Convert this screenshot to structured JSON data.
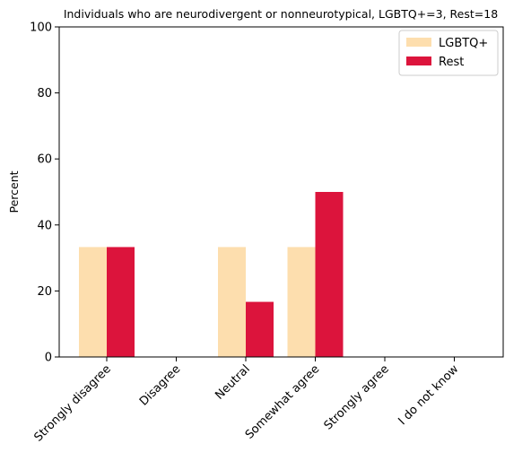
{
  "chart_data": {
    "type": "bar",
    "title": "Individuals who are neurodivergent or nonneurotypical, LGBTQ+=3, Rest=18",
    "xlabel": "",
    "ylabel": "Percent",
    "ylim": [
      0,
      100
    ],
    "yticks": [
      "0",
      "20",
      "40",
      "60",
      "80",
      "100"
    ],
    "categories": [
      "Strongly disagree",
      "Disagree",
      "Neutral",
      "Somewhat agree",
      "Strongly agree",
      "I do not know"
    ],
    "series": [
      {
        "name": "LGBTQ+",
        "color": "#fddeae",
        "values": [
          33.3,
          0,
          33.3,
          33.3,
          0,
          0
        ]
      },
      {
        "name": "Rest",
        "color": "#dc143c",
        "values": [
          33.3,
          0,
          16.7,
          50.0,
          0,
          0
        ]
      }
    ],
    "legend_position": "top-right",
    "grid": false
  }
}
